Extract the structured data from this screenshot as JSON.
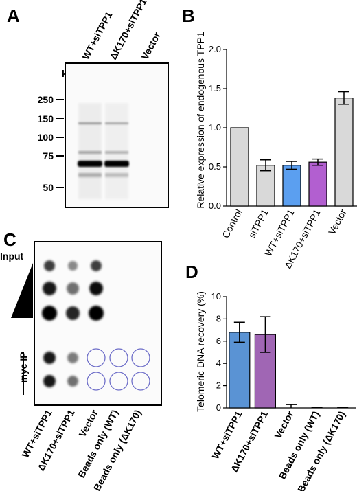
{
  "panels": {
    "A": "A",
    "B": "B",
    "C": "C",
    "D": "D"
  },
  "blot": {
    "lanes": [
      "WT+siTPP1",
      "ΔK170+siTPP1",
      "Vector"
    ],
    "kda_label": "kDa",
    "markers": [
      "250",
      "150",
      "100",
      "75",
      "50"
    ]
  },
  "dotblot": {
    "lanes": [
      "WT+siTPP1",
      "ΔK170+siTPP1",
      "Vector",
      "Beads only (WT)",
      "Beads only (ΔK170)"
    ],
    "input_label": "Input",
    "ip_label": "myc IP"
  },
  "colors": {
    "gray": "#d9d9d9",
    "blue": "#5b9ff0",
    "purple": "#b25fd0",
    "blue_d": "#5a93d4",
    "purple_d": "#a066b4",
    "circle": "#6f6fc9"
  },
  "chart_data": [
    {
      "panel": "B",
      "type": "bar",
      "categories": [
        "Control",
        "siTPP1",
        "WT+siTPP1",
        "ΔK170+siTPP1",
        "Vector"
      ],
      "values": [
        1.0,
        0.52,
        0.52,
        0.56,
        1.38
      ],
      "errors": [
        0,
        0.07,
        0.05,
        0.04,
        0.08
      ],
      "bar_colors": [
        "gray",
        "gray",
        "blue",
        "purple",
        "gray"
      ],
      "ylabel": "Relative expression of endogenous TPP1",
      "ylim": [
        0,
        2.0
      ],
      "yticks": [
        "0.0",
        "0.5",
        "1.0",
        "1.5",
        "2.0"
      ]
    },
    {
      "panel": "D",
      "type": "bar",
      "categories": [
        "WT+siTPP1",
        "ΔK170+siTPP1",
        "Vector",
        "Beads only (WT)",
        "Beads only (ΔK170)"
      ],
      "values": [
        6.8,
        6.6,
        0.05,
        0.0,
        0.02
      ],
      "errors": [
        0.9,
        1.6,
        0.25,
        0.02,
        0.04
      ],
      "bar_colors": [
        "blue_d",
        "purple_d",
        "none",
        "none",
        "none"
      ],
      "ylabel": "Telomeric DNA recovery (%)",
      "ylim": [
        0,
        10
      ],
      "yticks": [
        "0",
        "2",
        "4",
        "6",
        "8",
        "10"
      ]
    }
  ]
}
